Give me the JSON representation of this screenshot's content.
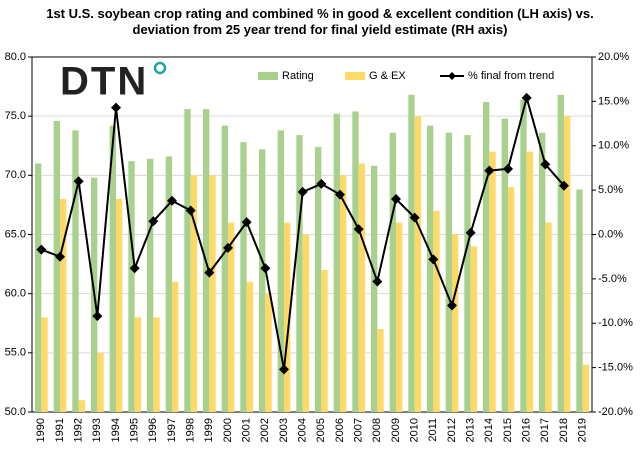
{
  "chart_data": {
    "type": "bar_line",
    "title": "1st U.S. soybean crop rating and combined % in good & excellent condition (LH axis) vs. deviation from 25 year trend for final yield estimate (RH axis)",
    "logo": "DTN",
    "categories": [
      "1990",
      "1991",
      "1992",
      "1993",
      "1994",
      "1995",
      "1996",
      "1997",
      "1998",
      "1999",
      "2000",
      "2001",
      "2002",
      "2003",
      "2004",
      "2005",
      "2006",
      "2007",
      "2008",
      "2009",
      "2010",
      "2011",
      "2012",
      "2013",
      "2014",
      "2015",
      "2016",
      "2017",
      "2018",
      "2019"
    ],
    "series": [
      {
        "name": "Rating",
        "color": "#a9d18e",
        "kind": "bar",
        "values": [
          71.0,
          74.6,
          73.8,
          69.8,
          74.2,
          71.2,
          71.4,
          71.6,
          75.6,
          75.6,
          74.2,
          72.8,
          72.2,
          73.8,
          73.4,
          72.4,
          75.2,
          75.4,
          70.8,
          73.6,
          76.8,
          74.2,
          73.6,
          73.4,
          76.2,
          74.8,
          76.4,
          73.6,
          76.8,
          68.8
        ]
      },
      {
        "name": "G & EX",
        "color": "#ffd966",
        "kind": "bar",
        "values": [
          58,
          68,
          51,
          55,
          68,
          58,
          58,
          61,
          70,
          70,
          66,
          61,
          60,
          66,
          65,
          62,
          70,
          71,
          57,
          66,
          75,
          67,
          65,
          64,
          72,
          69,
          72,
          66,
          75,
          54
        ]
      },
      {
        "name": "% final from trend",
        "color": "#000000",
        "kind": "line",
        "axis": "y2",
        "values": [
          -1.7,
          -2.5,
          6.0,
          -9.2,
          14.3,
          -3.8,
          1.5,
          3.8,
          2.7,
          -4.3,
          -1.5,
          1.4,
          -3.8,
          -15.2,
          4.8,
          5.7,
          4.5,
          0.6,
          -5.3,
          4.0,
          1.9,
          -2.8,
          -8.0,
          0.2,
          7.2,
          7.4,
          15.4,
          7.9,
          5.5,
          null
        ]
      }
    ],
    "ylim": [
      50,
      80
    ],
    "yticks": [
      {
        "value": 50,
        "label": "50.0"
      },
      {
        "value": 55,
        "label": "55.0"
      },
      {
        "value": 60,
        "label": "60.0"
      },
      {
        "value": 65,
        "label": "65.0"
      },
      {
        "value": 70,
        "label": "70.0"
      },
      {
        "value": 75,
        "label": "75.0"
      },
      {
        "value": 80,
        "label": "80.0"
      }
    ],
    "y2lim": [
      -20,
      20
    ],
    "y2ticks": [
      {
        "value": -20,
        "label": "-20.0%"
      },
      {
        "value": -15,
        "label": "-15.0%"
      },
      {
        "value": -10,
        "label": "-10.0%"
      },
      {
        "value": -5,
        "label": "-5.0%"
      },
      {
        "value": 0,
        "label": "0.0%"
      },
      {
        "value": 5,
        "label": "5.0%"
      },
      {
        "value": 10,
        "label": "10.0%"
      },
      {
        "value": 15,
        "label": "15.0%"
      },
      {
        "value": 20,
        "label": "20.0%"
      }
    ],
    "grid": true,
    "legend": "top"
  }
}
